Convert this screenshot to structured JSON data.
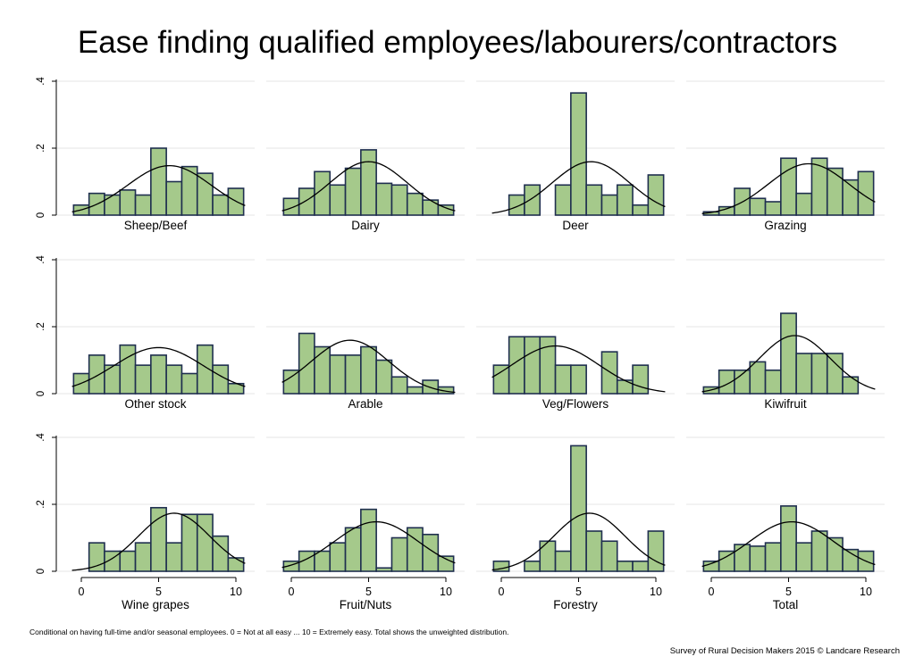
{
  "title": "Ease finding qualified employees/labourers/contractors",
  "footnote": "Conditional on having full-time and/or seasonal employees. 0 = Not at all easy ... 10 = Extremely easy. Total shows the unweighted distribution.",
  "credit": "Survey of Rural Decision Makers 2015 © Landcare Research",
  "colors": {
    "bar_fill": "#a5c98b",
    "bar_stroke": "#1f2f4f",
    "curve": "#000000",
    "grid": "#e6e6e6"
  },
  "chart_data": {
    "type": "bar",
    "subtype": "histogram with normal density overlay, small multiples",
    "x": [
      0,
      1,
      2,
      3,
      4,
      5,
      6,
      7,
      8,
      9,
      10
    ],
    "xticks": [
      0,
      5,
      10
    ],
    "yticks": [
      0,
      0.2,
      0.4
    ],
    "ytick_labels": [
      "0",
      ".2",
      ".4"
    ],
    "ylim": [
      0,
      0.4
    ],
    "grid": true,
    "panels": [
      {
        "name": "Sheep/Beef",
        "values": [
          0.03,
          0.065,
          0.06,
          0.075,
          0.06,
          0.2,
          0.1,
          0.145,
          0.125,
          0.06,
          0.08
        ],
        "normal": {
          "mean": 5.7,
          "sd": 2.7
        }
      },
      {
        "name": "Dairy",
        "values": [
          0.05,
          0.08,
          0.13,
          0.09,
          0.14,
          0.195,
          0.095,
          0.09,
          0.065,
          0.045,
          0.03
        ],
        "normal": {
          "mean": 5.0,
          "sd": 2.5
        }
      },
      {
        "name": "Deer",
        "values": [
          0,
          0.06,
          0.09,
          0,
          0.09,
          0.365,
          0.09,
          0.06,
          0.09,
          0.03,
          0.12
        ],
        "normal": {
          "mean": 5.8,
          "sd": 2.5
        }
      },
      {
        "name": "Grazing",
        "values": [
          0.01,
          0.025,
          0.08,
          0.05,
          0.04,
          0.17,
          0.065,
          0.17,
          0.14,
          0.105,
          0.13
        ],
        "normal": {
          "mean": 6.3,
          "sd": 2.6
        }
      },
      {
        "name": "Other stock",
        "values": [
          0.06,
          0.115,
          0.085,
          0.145,
          0.085,
          0.115,
          0.085,
          0.06,
          0.145,
          0.085,
          0.03
        ],
        "normal": {
          "mean": 5.0,
          "sd": 2.9
        }
      },
      {
        "name": "Arable",
        "values": [
          0.07,
          0.18,
          0.14,
          0.115,
          0.115,
          0.14,
          0.1,
          0.05,
          0.02,
          0.04,
          0.02
        ],
        "normal": {
          "mean": 3.8,
          "sd": 2.5
        }
      },
      {
        "name": "Veg/Flowers",
        "values": [
          0.085,
          0.17,
          0.17,
          0.17,
          0.085,
          0.085,
          0,
          0.125,
          0.04,
          0.085,
          0
        ],
        "normal": {
          "mean": 3.5,
          "sd": 2.8
        }
      },
      {
        "name": "Kiwifruit",
        "values": [
          0.02,
          0.07,
          0.07,
          0.095,
          0.07,
          0.24,
          0.12,
          0.12,
          0.12,
          0.05,
          0
        ],
        "normal": {
          "mean": 5.4,
          "sd": 2.3
        }
      },
      {
        "name": "Wine grapes",
        "values": [
          0,
          0.085,
          0.06,
          0.06,
          0.085,
          0.19,
          0.085,
          0.17,
          0.17,
          0.105,
          0.04
        ],
        "normal": {
          "mean": 6.0,
          "sd": 2.3
        }
      },
      {
        "name": "Fruit/Nuts",
        "values": [
          0.03,
          0.06,
          0.06,
          0.085,
          0.13,
          0.185,
          0.01,
          0.1,
          0.13,
          0.11,
          0.045
        ],
        "normal": {
          "mean": 5.5,
          "sd": 2.7
        }
      },
      {
        "name": "Forestry",
        "values": [
          0.03,
          0,
          0.03,
          0.09,
          0.06,
          0.375,
          0.12,
          0.09,
          0.03,
          0.03,
          0.12
        ],
        "normal": {
          "mean": 5.7,
          "sd": 2.3
        }
      },
      {
        "name": "Total",
        "values": [
          0.03,
          0.06,
          0.08,
          0.075,
          0.085,
          0.195,
          0.085,
          0.12,
          0.1,
          0.065,
          0.06
        ],
        "normal": {
          "mean": 5.2,
          "sd": 2.7
        }
      }
    ]
  }
}
